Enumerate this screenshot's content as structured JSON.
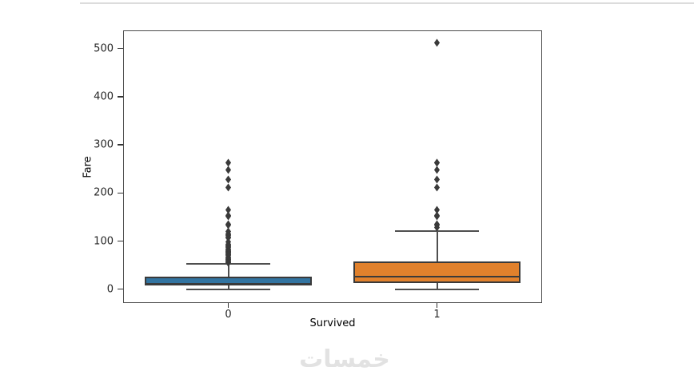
{
  "page": {
    "background_color": "#ffffff",
    "top_border_color": "#dcdcdc",
    "watermark": "خمسات",
    "watermark_color": "#e2e2e2"
  },
  "chart_data": {
    "type": "box",
    "title": "",
    "xlabel": "Survived",
    "ylabel": "Fare",
    "categories": [
      "0",
      "1"
    ],
    "y_ticks": [
      0,
      100,
      200,
      300,
      400,
      500
    ],
    "ylim": [
      -27,
      536
    ],
    "grid": false,
    "legend": null,
    "series": [
      {
        "category": "0",
        "color": "#3274a1",
        "q1": 7.9,
        "median": 10.5,
        "q3": 26.0,
        "whisker_low": 0,
        "whisker_high": 52,
        "outliers": [
          263,
          247.5,
          227.5,
          211.5,
          164.9,
          153.5,
          151.6,
          135.6,
          133.7,
          120,
          115,
          113.3,
          110.9,
          108.9,
          106.4,
          98,
          93.5,
          91.1,
          90,
          89.1,
          86.5,
          83.5,
          82.2,
          80,
          79.2,
          78.9,
          77.3,
          76.7,
          75.2,
          73.5,
          71.3,
          71,
          69.6,
          66.6,
          65,
          63.4,
          61.9,
          61.4,
          59.4,
          57.75,
          56.5,
          55.9,
          55
        ]
      },
      {
        "category": "1",
        "color": "#e1812c",
        "q1": 12.5,
        "median": 26.0,
        "q3": 57.0,
        "whisker_low": 0,
        "whisker_high": 120,
        "outliers": [
          512.3,
          263,
          262.4,
          247.5,
          227.5,
          211.3,
          164.9,
          153.5,
          151.6,
          135.6,
          133.7,
          128.1
        ]
      }
    ],
    "style": {
      "edge_color": "#3a3a3a",
      "line_color": "#4f4f4f",
      "flier_color": "#3a3a3a",
      "spine_color": "#4d4d4d",
      "tick_color": "#333333",
      "label_color": "#262626",
      "box_width_frac": 0.4,
      "cap_width_frac": 0.2
    }
  }
}
